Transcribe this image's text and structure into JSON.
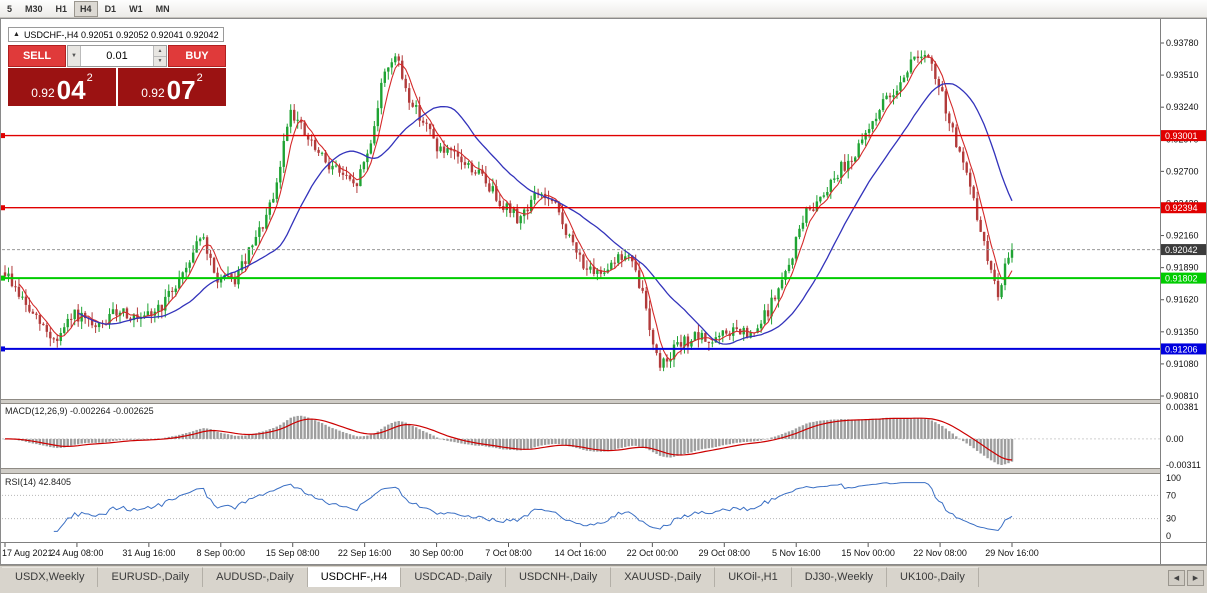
{
  "toolbar": {
    "timeframes": [
      "5",
      "M30",
      "H1",
      "H4",
      "D1",
      "W1",
      "MN"
    ],
    "active": "H4"
  },
  "symbol_info": {
    "marker": "▲",
    "text": "USDCHF-,H4 0.92051 0.92052 0.92041 0.92042"
  },
  "trade_panel": {
    "sell_label": "SELL",
    "buy_label": "BUY",
    "volume": "0.01",
    "icons": {
      "volume_dropdown": "▼",
      "spin_up": "▲",
      "spin_down": "▼"
    },
    "sell_price": {
      "prefix": "0.92",
      "pips": "04",
      "sup": "2"
    },
    "buy_price": {
      "prefix": "0.92",
      "pips": "07",
      "sup": "2"
    }
  },
  "chart_data": {
    "type": "candlestick",
    "symbol": "USDCHF-",
    "timeframe": "H4",
    "quote": {
      "open": "0.92051",
      "high": "0.92052",
      "low": "0.92041",
      "close": "0.92042"
    },
    "y_axis": {
      "max": 0.9378,
      "min": 0.9081,
      "ticks": [
        "0.93780",
        "0.93510",
        "0.93240",
        "0.92970",
        "0.92700",
        "0.92430",
        "0.92160",
        "0.91890",
        "0.91620",
        "0.91350",
        "0.91080",
        "0.90810"
      ]
    },
    "x_labels": [
      "17 Aug 2021",
      "24 Aug 08:00",
      "31 Aug 16:00",
      "8 Sep 00:00",
      "15 Sep 08:00",
      "22 Sep 16:00",
      "30 Sep 00:00",
      "7 Oct 08:00",
      "14 Oct 16:00",
      "22 Oct 00:00",
      "29 Oct 08:00",
      "5 Nov 16:00",
      "15 Nov 00:00",
      "22 Nov 08:00",
      "29 Nov 16:00"
    ],
    "horizontal_lines": [
      {
        "price": 0.93001,
        "label": "0.93001",
        "color": "#e00000",
        "width": 1.4
      },
      {
        "price": 0.92394,
        "label": "0.92394",
        "color": "#e00000",
        "width": 1.4
      },
      {
        "price": 0.91802,
        "label": "0.91802",
        "color": "#00cc00",
        "width": 2
      },
      {
        "price": 0.91206,
        "label": "0.91206",
        "color": "#0000dd",
        "width": 2
      }
    ],
    "current_price": {
      "price": 0.92042,
      "label": "0.92042",
      "box_color": "#3c3c3c"
    },
    "bars": 290,
    "candle_up_color": "#1fa333",
    "candle_down_color": "#b23b3b",
    "ma_fast_color": "#d42a2a",
    "ma_slow_color": "#3333bb",
    "ma_fast_period": 5,
    "ma_slow_period": 22,
    "noise": {
      "seed": 9,
      "body": 0.0011,
      "wick": 0.0007
    },
    "price_path": [
      [
        0.0,
        0.9185
      ],
      [
        0.013,
        0.9168
      ],
      [
        0.026,
        0.915
      ],
      [
        0.05,
        0.9127
      ],
      [
        0.07,
        0.915
      ],
      [
        0.09,
        0.9136
      ],
      [
        0.115,
        0.9155
      ],
      [
        0.134,
        0.9142
      ],
      [
        0.159,
        0.916
      ],
      [
        0.18,
        0.919
      ],
      [
        0.194,
        0.9218
      ],
      [
        0.209,
        0.918
      ],
      [
        0.228,
        0.9178
      ],
      [
        0.248,
        0.921
      ],
      [
        0.268,
        0.9248
      ],
      [
        0.283,
        0.9325
      ],
      [
        0.298,
        0.93
      ],
      [
        0.313,
        0.9282
      ],
      [
        0.332,
        0.927
      ],
      [
        0.347,
        0.9255
      ],
      [
        0.362,
        0.929
      ],
      [
        0.377,
        0.9355
      ],
      [
        0.387,
        0.9368
      ],
      [
        0.402,
        0.933
      ],
      [
        0.416,
        0.9312
      ],
      [
        0.431,
        0.9288
      ],
      [
        0.451,
        0.928
      ],
      [
        0.471,
        0.9268
      ],
      [
        0.491,
        0.9246
      ],
      [
        0.51,
        0.923
      ],
      [
        0.53,
        0.9253
      ],
      [
        0.548,
        0.9238
      ],
      [
        0.565,
        0.9205
      ],
      [
        0.585,
        0.918
      ],
      [
        0.604,
        0.9196
      ],
      [
        0.619,
        0.9199
      ],
      [
        0.634,
        0.9165
      ],
      [
        0.649,
        0.9106
      ],
      [
        0.664,
        0.912
      ],
      [
        0.683,
        0.913
      ],
      [
        0.703,
        0.9127
      ],
      [
        0.723,
        0.9136
      ],
      [
        0.743,
        0.913
      ],
      [
        0.762,
        0.916
      ],
      [
        0.777,
        0.9186
      ],
      [
        0.792,
        0.923
      ],
      [
        0.807,
        0.9246
      ],
      [
        0.827,
        0.927
      ],
      [
        0.847,
        0.9287
      ],
      [
        0.866,
        0.932
      ],
      [
        0.886,
        0.9342
      ],
      [
        0.906,
        0.937
      ],
      [
        0.918,
        0.9362
      ],
      [
        0.931,
        0.9332
      ],
      [
        0.946,
        0.929
      ],
      [
        0.96,
        0.925
      ],
      [
        0.975,
        0.92
      ],
      [
        0.985,
        0.9166
      ],
      [
        0.993,
        0.9188
      ],
      [
        1.0,
        0.9204
      ]
    ]
  },
  "macd_panel": {
    "label": "MACD(12,26,9) -0.002264 -0.002625",
    "fast": 12,
    "slow": 26,
    "signal": 9,
    "main_value": -0.002264,
    "signal_value": -0.002625,
    "axis_top": 0.00381,
    "axis_bottom": -0.00311,
    "axis_labels": [
      "0.00381",
      "0.00",
      "-0.00311"
    ],
    "histogram_color": "#9e9e9e",
    "signal_color": "#cc0000"
  },
  "rsi_panel": {
    "label": "RSI(14) 42.8405",
    "period": 14,
    "value": 42.8405,
    "axis_labels": [
      "100",
      "70",
      "30",
      "0"
    ],
    "levels": [
      70,
      30
    ],
    "line_color": "#3a6fc4"
  },
  "tabs": {
    "items": [
      "USDX,Weekly",
      "EURUSD-,Daily",
      "AUDUSD-,Daily",
      "USDCHF-,H4",
      "USDCAD-,Daily",
      "USDCNH-,Daily",
      "XAUUSD-,Daily",
      "UKOil-,H1",
      "DJ30-,Weekly",
      "UK100-,Daily"
    ],
    "active_index": 3,
    "scroll_left": "◀",
    "scroll_right": "▶"
  }
}
